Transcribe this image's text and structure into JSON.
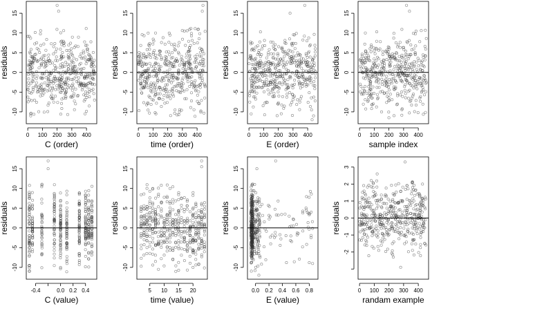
{
  "chart_data": [
    {
      "type": "scatter",
      "xlabel": "C (order)",
      "ylabel": "residuals",
      "xlim": [
        -10,
        470
      ],
      "ylim": [
        -13,
        18
      ],
      "xticks": [
        {
          "v": 0,
          "label": "0"
        },
        {
          "v": 100,
          "label": "100"
        },
        {
          "v": 200,
          "label": "200"
        },
        {
          "v": 300,
          "label": "300"
        },
        {
          "v": 400,
          "label": "400"
        }
      ],
      "yticks": [
        {
          "v": -10,
          "label": "-10"
        },
        {
          "v": -5,
          "label": "-5"
        },
        {
          "v": 0,
          "label": "0"
        },
        {
          "v": 5,
          "label": "5"
        },
        {
          "v": 10,
          "label": "10"
        },
        {
          "v": 15,
          "label": "15"
        }
      ],
      "hline": 0,
      "seed": 11,
      "n": 460,
      "gen": "order",
      "xrange": [
        0,
        455
      ],
      "sd": 4.6,
      "extremes": [
        [
          200,
          17
        ],
        [
          210,
          15.5
        ],
        [
          20,
          -11
        ],
        [
          390,
          -10.5
        ]
      ]
    },
    {
      "type": "scatter",
      "xlabel": "time (order)",
      "ylabel": "residuals",
      "xlim": [
        -10,
        470
      ],
      "ylim": [
        -13,
        18
      ],
      "xticks": [
        {
          "v": 0,
          "label": "0"
        },
        {
          "v": 100,
          "label": "100"
        },
        {
          "v": 200,
          "label": "200"
        },
        {
          "v": 300,
          "label": "300"
        },
        {
          "v": 400,
          "label": "400"
        }
      ],
      "yticks": [
        {
          "v": -10,
          "label": "-10"
        },
        {
          "v": -5,
          "label": "-5"
        },
        {
          "v": 0,
          "label": "0"
        },
        {
          "v": 5,
          "label": "5"
        },
        {
          "v": 10,
          "label": "10"
        },
        {
          "v": 15,
          "label": "15"
        }
      ],
      "hline": 0,
      "seed": 23,
      "n": 460,
      "gen": "order",
      "xrange": [
        0,
        455
      ],
      "sd": 4.6,
      "extremes": [
        [
          440,
          17
        ],
        [
          435,
          15.5
        ],
        [
          120,
          -10.5
        ],
        [
          280,
          -10
        ]
      ]
    },
    {
      "type": "scatter",
      "xlabel": "E (order)",
      "ylabel": "residuals",
      "xlim": [
        -10,
        470
      ],
      "ylim": [
        -13,
        18
      ],
      "xticks": [
        {
          "v": 0,
          "label": "0"
        },
        {
          "v": 100,
          "label": "100"
        },
        {
          "v": 200,
          "label": "200"
        },
        {
          "v": 300,
          "label": "300"
        },
        {
          "v": 400,
          "label": "400"
        }
      ],
      "yticks": [
        {
          "v": -10,
          "label": "-10"
        },
        {
          "v": -5,
          "label": "-5"
        },
        {
          "v": 0,
          "label": "0"
        },
        {
          "v": 5,
          "label": "5"
        },
        {
          "v": 10,
          "label": "10"
        },
        {
          "v": 15,
          "label": "15"
        }
      ],
      "hline": 0,
      "seed": 37,
      "n": 460,
      "gen": "order",
      "xrange": [
        0,
        455
      ],
      "sd": 4.6,
      "extremes": [
        [
          380,
          17
        ],
        [
          280,
          15
        ],
        [
          440,
          -11
        ],
        [
          430,
          -12
        ]
      ]
    },
    {
      "type": "scatter",
      "xlabel": "sample index",
      "ylabel": "residuals",
      "xlim": [
        -10,
        470
      ],
      "ylim": [
        -13,
        18
      ],
      "xticks": [
        {
          "v": 0,
          "label": "0"
        },
        {
          "v": 100,
          "label": "100"
        },
        {
          "v": 200,
          "label": "200"
        },
        {
          "v": 300,
          "label": "300"
        },
        {
          "v": 400,
          "label": "400"
        }
      ],
      "yticks": [
        {
          "v": -10,
          "label": "-10"
        },
        {
          "v": -5,
          "label": "-5"
        },
        {
          "v": 0,
          "label": "0"
        },
        {
          "v": 5,
          "label": "5"
        },
        {
          "v": 10,
          "label": "10"
        },
        {
          "v": 15,
          "label": "15"
        }
      ],
      "hline": 0,
      "seed": 53,
      "n": 460,
      "gen": "order",
      "xrange": [
        0,
        455
      ],
      "sd": 4.6,
      "extremes": [
        [
          320,
          17
        ],
        [
          340,
          15.5
        ],
        [
          200,
          -11.5
        ],
        [
          150,
          -10
        ]
      ]
    },
    {
      "type": "scatter",
      "xlabel": "C (value)",
      "ylabel": "residuals",
      "xlim": [
        -0.55,
        0.58
      ],
      "ylim": [
        -13,
        18
      ],
      "xticks": [
        {
          "v": -0.4,
          "label": "-0.4"
        },
        {
          "v": -0.2,
          "label": ""
        },
        {
          "v": 0.0,
          "label": "0.0"
        },
        {
          "v": 0.2,
          "label": "0.2"
        },
        {
          "v": 0.4,
          "label": "0.4"
        }
      ],
      "yticks": [
        {
          "v": -10,
          "label": "-10"
        },
        {
          "v": -5,
          "label": "-5"
        },
        {
          "v": 0,
          "label": "0"
        },
        {
          "v": 5,
          "label": "5"
        },
        {
          "v": 10,
          "label": "10"
        },
        {
          "v": 15,
          "label": "15"
        }
      ],
      "hline": 0,
      "seed": 71,
      "n": 460,
      "gen": "discrete",
      "levels": [
        -0.5,
        -0.45,
        -0.3,
        -0.1,
        0.0,
        0.1,
        0.3,
        0.4,
        0.45,
        0.5
      ],
      "sd": 4.6,
      "extremes": [
        [
          -0.2,
          17
        ],
        [
          -0.2,
          15
        ],
        [
          -0.5,
          -11
        ],
        [
          0.0,
          -10
        ]
      ]
    },
    {
      "type": "scatter",
      "xlabel": "time (value)",
      "ylabel": "residuals",
      "xlim": [
        0.5,
        25
      ],
      "ylim": [
        -13,
        18
      ],
      "xticks": [
        {
          "v": 5,
          "label": "5"
        },
        {
          "v": 10,
          "label": "10"
        },
        {
          "v": 15,
          "label": "15"
        },
        {
          "v": 20,
          "label": "20"
        }
      ],
      "yticks": [
        {
          "v": -10,
          "label": "-10"
        },
        {
          "v": -5,
          "label": "-5"
        },
        {
          "v": 0,
          "label": "0"
        },
        {
          "v": 5,
          "label": "5"
        },
        {
          "v": 10,
          "label": "10"
        },
        {
          "v": 15,
          "label": "15"
        }
      ],
      "hline": 0,
      "seed": 89,
      "n": 460,
      "gen": "discrete",
      "levels": [
        2,
        3,
        4,
        5,
        6,
        7,
        8,
        9,
        10,
        11,
        12,
        13,
        14,
        15,
        16,
        17,
        18,
        19,
        20,
        21,
        22,
        23,
        24
      ],
      "sd": 4.6,
      "extremes": [
        [
          23,
          17
        ],
        [
          23,
          15.5
        ],
        [
          8,
          -10.5
        ],
        [
          20,
          -10
        ]
      ]
    },
    {
      "type": "scatter",
      "xlabel": "E (value)",
      "ylabel": "residuals",
      "xlim": [
        -0.12,
        0.93
      ],
      "ylim": [
        -13,
        18
      ],
      "xticks": [
        {
          "v": 0.0,
          "label": "0.0"
        },
        {
          "v": 0.2,
          "label": "0.2"
        },
        {
          "v": 0.4,
          "label": "0.4"
        },
        {
          "v": 0.6,
          "label": "0.6"
        },
        {
          "v": 0.8,
          "label": "0.8"
        }
      ],
      "yticks": [
        {
          "v": -10,
          "label": "-10"
        },
        {
          "v": -5,
          "label": "-5"
        },
        {
          "v": 0,
          "label": "0"
        },
        {
          "v": 5,
          "label": "5"
        },
        {
          "v": 10,
          "label": "10"
        },
        {
          "v": 15,
          "label": "15"
        }
      ],
      "hline": 0,
      "seed": 97,
      "n": 460,
      "gen": "skewed",
      "sd": 4.6,
      "extremes": [
        [
          0.3,
          17
        ],
        [
          0.02,
          15
        ],
        [
          0.05,
          -12
        ],
        [
          0.85,
          -9
        ]
      ]
    },
    {
      "type": "scatter",
      "xlabel": "randam example",
      "ylabel": "residuals",
      "xlim": [
        -10,
        470
      ],
      "ylim": [
        -3.6,
        3.6
      ],
      "xticks": [
        {
          "v": 0,
          "label": "0"
        },
        {
          "v": 100,
          "label": "100"
        },
        {
          "v": 200,
          "label": "200"
        },
        {
          "v": 300,
          "label": "300"
        },
        {
          "v": 400,
          "label": "400"
        }
      ],
      "yticks": [
        {
          "v": -3,
          "label": ""
        },
        {
          "v": -2,
          "label": "-2"
        },
        {
          "v": -1,
          "label": "-1"
        },
        {
          "v": 0,
          "label": "0"
        },
        {
          "v": 1,
          "label": "1"
        },
        {
          "v": 2,
          "label": "2"
        },
        {
          "v": 3,
          "label": "3"
        }
      ],
      "hline": 0,
      "seed": 131,
      "n": 460,
      "gen": "order",
      "xrange": [
        0,
        455
      ],
      "sd": 1.0,
      "extremes": [
        [
          310,
          3.3
        ],
        [
          120,
          2.6
        ],
        [
          280,
          -2.9
        ],
        [
          230,
          -2.3
        ]
      ]
    }
  ]
}
